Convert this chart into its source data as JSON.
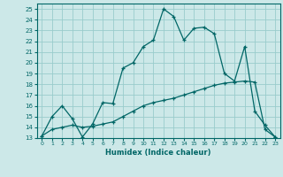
{
  "title": "",
  "xlabel": "Humidex (Indice chaleur)",
  "ylabel": "",
  "background_color": "#cce8e8",
  "line_color": "#006666",
  "grid_color": "#99cccc",
  "xlim": [
    -0.5,
    23.5
  ],
  "ylim": [
    13,
    25.5
  ],
  "yticks": [
    13,
    14,
    15,
    16,
    17,
    18,
    19,
    20,
    21,
    22,
    23,
    24,
    25
  ],
  "xticks": [
    0,
    1,
    2,
    3,
    4,
    5,
    6,
    7,
    8,
    9,
    10,
    11,
    12,
    13,
    14,
    15,
    16,
    17,
    18,
    19,
    20,
    21,
    22,
    23
  ],
  "line1_x": [
    0,
    1,
    2,
    3,
    4,
    5,
    6,
    7,
    8,
    9,
    10,
    11,
    12,
    13,
    14,
    15,
    16,
    17,
    18,
    19,
    20,
    21,
    22,
    23
  ],
  "line1_y": [
    13.2,
    15.0,
    16.0,
    14.8,
    13.1,
    14.3,
    16.3,
    16.2,
    19.5,
    20.0,
    21.5,
    22.1,
    25.0,
    24.3,
    22.1,
    23.2,
    23.3,
    22.7,
    19.0,
    18.3,
    21.5,
    15.5,
    14.2,
    13.1
  ],
  "line2_x": [
    0,
    1,
    2,
    3,
    4,
    5,
    6,
    7,
    8,
    9,
    10,
    11,
    12,
    13,
    14,
    15,
    16,
    17,
    18,
    19,
    20,
    21,
    22,
    23
  ],
  "line2_y": [
    13.2,
    13.8,
    14.0,
    14.2,
    14.0,
    14.1,
    14.3,
    14.5,
    15.0,
    15.5,
    16.0,
    16.3,
    16.5,
    16.7,
    17.0,
    17.3,
    17.6,
    17.9,
    18.1,
    18.2,
    18.3,
    18.2,
    13.8,
    13.1
  ]
}
